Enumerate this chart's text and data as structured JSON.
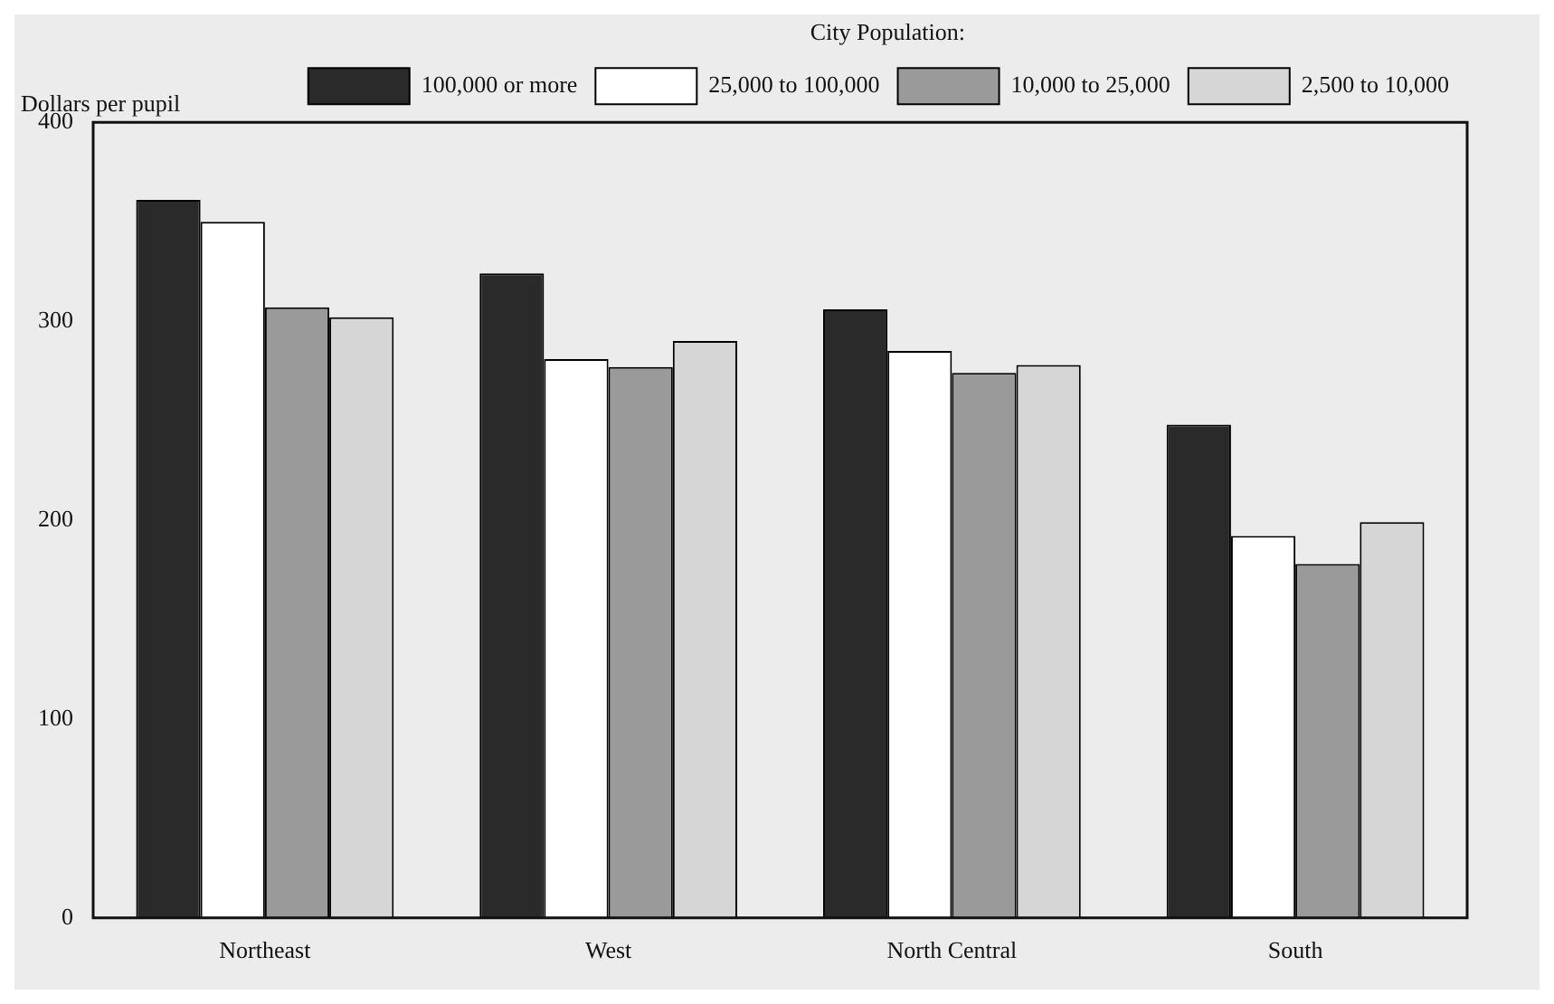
{
  "chart_data": {
    "type": "bar",
    "ylabel": "Dollars per pupil",
    "legend_title": "City Population:",
    "categories": [
      "Northeast",
      "West",
      "North Central",
      "South"
    ],
    "series": [
      {
        "name": "100,000 or more",
        "color": "#2a2a2a",
        "values": [
          361,
          324,
          306,
          248
        ]
      },
      {
        "name": "25,000 to 100,000",
        "color": "#ffffff",
        "values": [
          350,
          281,
          285,
          192
        ]
      },
      {
        "name": "10,000 to 25,000",
        "color": "#9a9a9a",
        "values": [
          307,
          277,
          274,
          178
        ]
      },
      {
        "name": "2,500 to 10,000",
        "color": "#d6d6d6",
        "values": [
          302,
          290,
          278,
          199
        ]
      }
    ],
    "ylim": [
      0,
      400
    ],
    "yticks": [
      0,
      100,
      200,
      300,
      400
    ],
    "grid": false,
    "legend": "top right"
  }
}
